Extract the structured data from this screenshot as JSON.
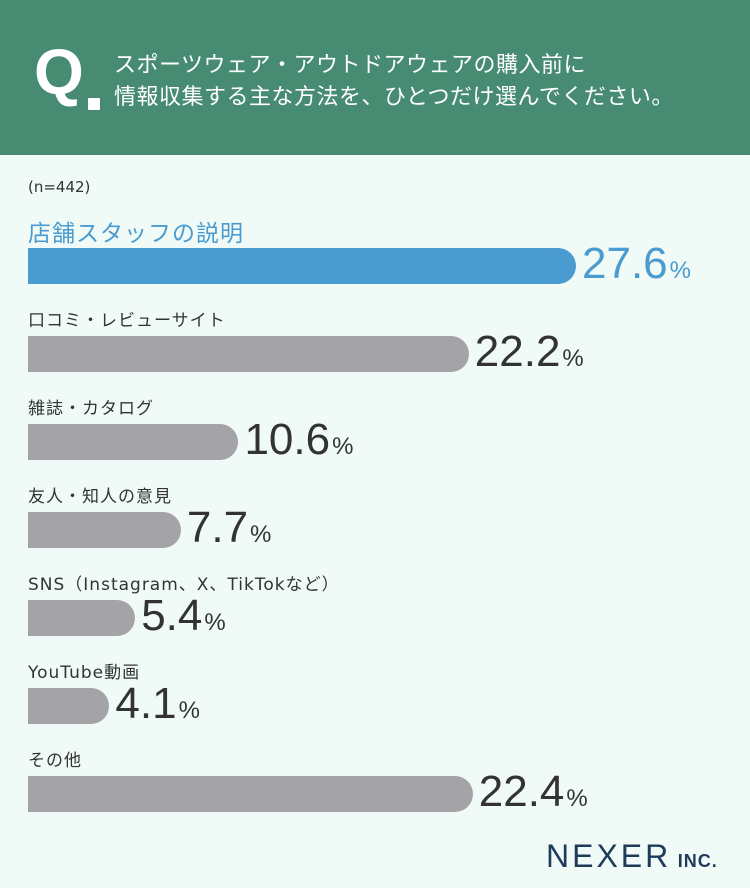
{
  "header": {
    "q_mark": "Q",
    "question_line1": "スポーツウェア・アウトドアウェアの購入前に",
    "question_line2": "情報収集する主な方法を、ひとつだけ選んでください。"
  },
  "sample_size": "(n=442)",
  "chart_data": {
    "type": "bar",
    "orientation": "horizontal",
    "categories": [
      "店舗スタッフの説明",
      "口コミ・レビューサイト",
      "雑誌・カタログ",
      "友人・知人の意見",
      "SNS（Instagram、X、TikTokなど）",
      "YouTube動画",
      "その他"
    ],
    "values": [
      27.6,
      22.2,
      10.6,
      7.7,
      5.4,
      4.1,
      22.4
    ],
    "value_labels": [
      "27.6",
      "22.2",
      "10.6",
      "7.7",
      "5.4",
      "4.1",
      "22.4"
    ],
    "unit": "%",
    "highlight_index": 0,
    "colors": {
      "highlight": "#4a9bcf",
      "default": "#a3a3a8"
    }
  },
  "logo": {
    "main": "NEXER",
    "sub": "INC."
  }
}
